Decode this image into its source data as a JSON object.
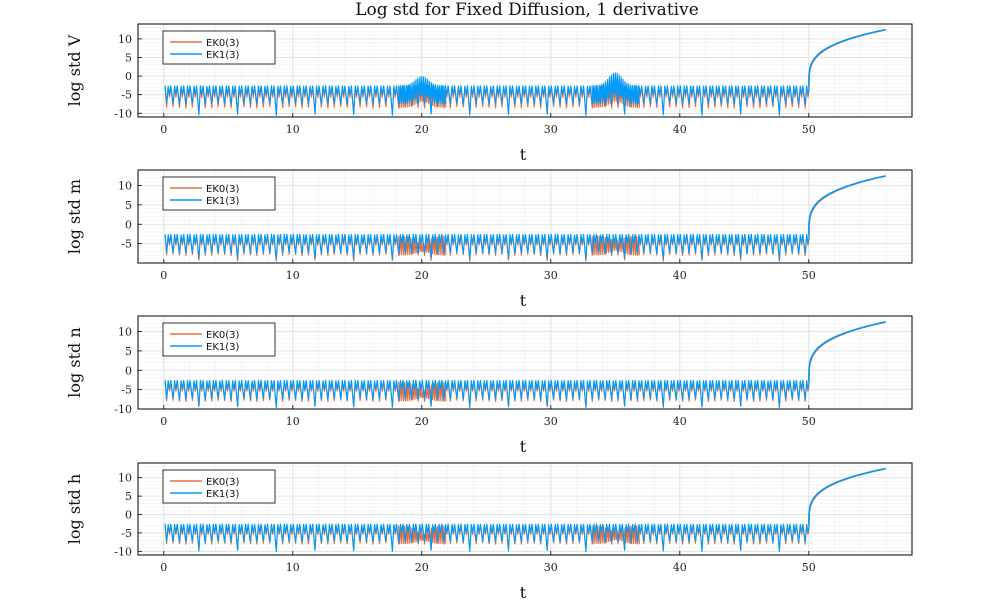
{
  "title": "Log std for Fixed Diffusion, 1 derivative",
  "colors": {
    "EK0(3)": "#e26f46",
    "EK1(3)": "#009af9",
    "grid": "#dcdcdc",
    "frame": "#000000"
  },
  "chart_data": [
    {
      "type": "line",
      "title": "Log std for Fixed Diffusion, 1 derivative",
      "xlabel": "t",
      "ylabel": "log std V",
      "xlim": [
        -2,
        58
      ],
      "ylim": [
        -11,
        14
      ],
      "xticks": [
        0,
        10,
        20,
        30,
        40,
        50
      ],
      "yticks": [
        10,
        5,
        0,
        -5,
        -10
      ],
      "grid": true,
      "legend": "top-left",
      "series": [
        {
          "name": "EK0(3)",
          "bands": [
            -8.5,
            -3
          ],
          "spikes_to": -10,
          "bumps": [
            [
              20,
              -3.0
            ],
            [
              35,
              -3.0
            ]
          ],
          "tail_end": 12.5
        },
        {
          "name": "EK1(3)",
          "bands": [
            -7.5,
            -2.5
          ],
          "spikes_to": -10.5,
          "bumps": [
            [
              20,
              0
            ],
            [
              35,
              1
            ]
          ],
          "tail_end": 12.5
        }
      ]
    },
    {
      "type": "line",
      "xlabel": "t",
      "ylabel": "log std m",
      "xlim": [
        -2,
        58
      ],
      "ylim": [
        -10,
        14
      ],
      "xticks": [
        0,
        10,
        20,
        30,
        40,
        50
      ],
      "yticks": [
        10,
        5,
        0,
        -5
      ],
      "grid": true,
      "legend": "top-left",
      "series": [
        {
          "name": "EK0(3)",
          "bands": [
            -8,
            -3
          ],
          "spikes_to": -9.5,
          "bumps": [
            [
              20,
              -5
            ],
            [
              35,
              -4
            ]
          ],
          "tail_end": 12.5
        },
        {
          "name": "EK1(3)",
          "bands": [
            -7.5,
            -2.5
          ],
          "spikes_to": -9,
          "bumps": [],
          "tail_end": 12.5
        }
      ]
    },
    {
      "type": "line",
      "xlabel": "t",
      "ylabel": "log std n",
      "xlim": [
        -2,
        58
      ],
      "ylim": [
        -10,
        14
      ],
      "xticks": [
        0,
        10,
        20,
        30,
        40,
        50
      ],
      "yticks": [
        10,
        5,
        0,
        -5,
        -10
      ],
      "grid": true,
      "legend": "top-left",
      "series": [
        {
          "name": "EK0(3)",
          "bands": [
            -8,
            -3
          ],
          "spikes_to": -9.5,
          "bumps": [
            [
              20,
              -5
            ]
          ],
          "tail_end": 12.5
        },
        {
          "name": "EK1(3)",
          "bands": [
            -7.5,
            -2.5
          ],
          "spikes_to": -9.5,
          "bumps": [],
          "tail_end": 12.5
        }
      ]
    },
    {
      "type": "line",
      "xlabel": "t",
      "ylabel": "log std h",
      "xlim": [
        -2,
        58
      ],
      "ylim": [
        -11,
        14
      ],
      "xticks": [
        0,
        10,
        20,
        30,
        40,
        50
      ],
      "yticks": [
        10,
        5,
        0,
        -5,
        -10
      ],
      "grid": true,
      "legend": "top-left",
      "series": [
        {
          "name": "EK0(3)",
          "bands": [
            -8,
            -3
          ],
          "spikes_to": -9.5,
          "bumps": [
            [
              20,
              -5
            ],
            [
              35,
              -4.5
            ]
          ],
          "tail_end": 12.5
        },
        {
          "name": "EK1(3)",
          "bands": [
            -7.5,
            -2.5
          ],
          "spikes_to": -10,
          "bumps": [],
          "tail_end": 12.5
        }
      ]
    }
  ]
}
